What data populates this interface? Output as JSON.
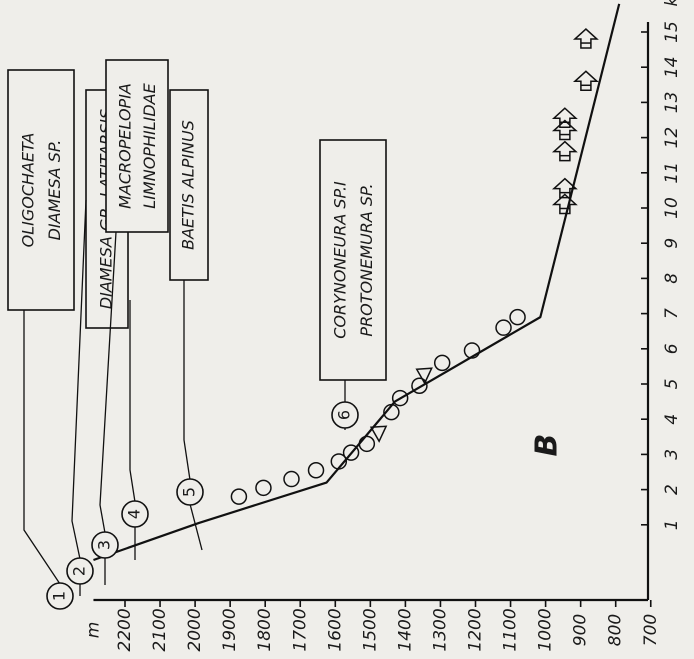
{
  "chart_data": {
    "type": "line",
    "title": "",
    "panel_label": "B",
    "x_unit": "km",
    "y_unit": "m",
    "x_ticks": [
      1,
      2,
      3,
      4,
      5,
      6,
      7,
      8,
      9,
      10,
      11,
      12,
      13,
      14,
      15
    ],
    "y_ticks": [
      2200,
      2100,
      2000,
      1900,
      1800,
      1700,
      1600,
      1500,
      1400,
      1300,
      1200,
      1100,
      1000,
      900,
      800,
      700
    ],
    "xlim": [
      0,
      15.8
    ],
    "ylim": [
      700,
      2290
    ],
    "profile": {
      "x": [
        0,
        1.05,
        2.2,
        4.5,
        6.9,
        15.8
      ],
      "y": [
        2290,
        1990,
        1625,
        1430,
        1015,
        790
      ]
    },
    "markers": [
      {
        "shape": "circle",
        "x": 1.8,
        "y": 1875
      },
      {
        "shape": "circle",
        "x": 2.05,
        "y": 1805
      },
      {
        "shape": "circle",
        "x": 2.3,
        "y": 1725
      },
      {
        "shape": "circle",
        "x": 2.55,
        "y": 1655
      },
      {
        "shape": "circle",
        "x": 2.8,
        "y": 1590
      },
      {
        "shape": "circle",
        "x": 3.05,
        "y": 1555
      },
      {
        "shape": "circle",
        "x": 3.3,
        "y": 1510
      },
      {
        "shape": "triangle",
        "x": 3.6,
        "y": 1475
      },
      {
        "shape": "circle",
        "x": 4.2,
        "y": 1440
      },
      {
        "shape": "circle",
        "x": 4.6,
        "y": 1415
      },
      {
        "shape": "circle",
        "x": 4.95,
        "y": 1360
      },
      {
        "shape": "triangle",
        "x": 5.25,
        "y": 1345
      },
      {
        "shape": "circle",
        "x": 5.6,
        "y": 1295
      },
      {
        "shape": "circle",
        "x": 5.95,
        "y": 1210
      },
      {
        "shape": "circle",
        "x": 6.6,
        "y": 1120
      },
      {
        "shape": "circle",
        "x": 6.9,
        "y": 1080
      },
      {
        "shape": "arrow",
        "x": 10.1,
        "y": 945
      },
      {
        "shape": "arrow",
        "x": 10.55,
        "y": 945
      },
      {
        "shape": "arrow",
        "x": 11.6,
        "y": 945
      },
      {
        "shape": "arrow",
        "x": 12.2,
        "y": 945
      },
      {
        "shape": "arrow",
        "x": 12.55,
        "y": 945
      },
      {
        "shape": "arrow",
        "x": 13.6,
        "y": 885
      },
      {
        "shape": "arrow",
        "x": 14.8,
        "y": 885
      }
    ],
    "annotations": [
      {
        "id": 1,
        "num": "1",
        "lines": [
          "OLIGOCHAETA",
          "DIAMESA SP."
        ]
      },
      {
        "id": 2,
        "num": "2",
        "lines": [
          "DIAMESA GR. LATITARSIS"
        ]
      },
      {
        "id": 3,
        "num": "3",
        "lines": [
          "MACROPELOPIA",
          "LIMNOPHILIDAE"
        ]
      },
      {
        "id": 4,
        "num": "4",
        "lines": []
      },
      {
        "id": 5,
        "num": "5",
        "lines": [
          "BAETIS ALPINUS"
        ]
      },
      {
        "id": 6,
        "num": "6",
        "lines": [
          "CORYNONEURA SP.I",
          "PROTONEMURA SP."
        ]
      }
    ]
  }
}
